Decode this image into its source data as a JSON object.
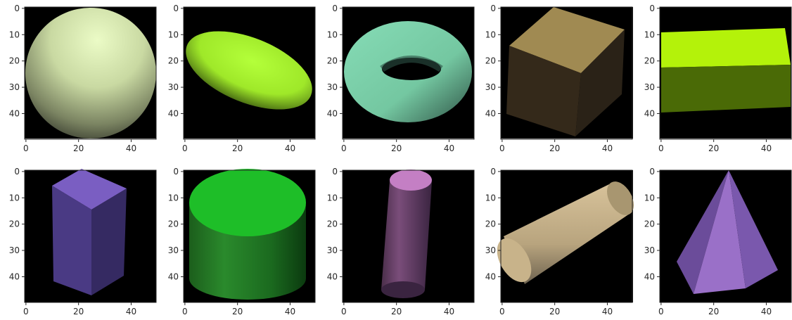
{
  "figure": {
    "panels": [
      {
        "shape": "sphere",
        "color": "#dcefb4"
      },
      {
        "shape": "ellipsoid",
        "color": "#a8f02a"
      },
      {
        "shape": "torus",
        "color": "#7fd4ad"
      },
      {
        "shape": "cube",
        "color": "#a08a52"
      },
      {
        "shape": "box",
        "color": "#b4f20a"
      },
      {
        "shape": "box",
        "color": "#7a5ec2"
      },
      {
        "shape": "cylinder",
        "color": "#1ebe28"
      },
      {
        "shape": "cylinder",
        "color": "#c47fc4"
      },
      {
        "shape": "cylinder",
        "color": "#c8b38a"
      },
      {
        "shape": "pyramid",
        "color": "#9a70c8"
      }
    ],
    "x_ticks": [
      "0",
      "20",
      "40"
    ],
    "y_ticks": [
      "0",
      "10",
      "20",
      "30",
      "40"
    ]
  }
}
